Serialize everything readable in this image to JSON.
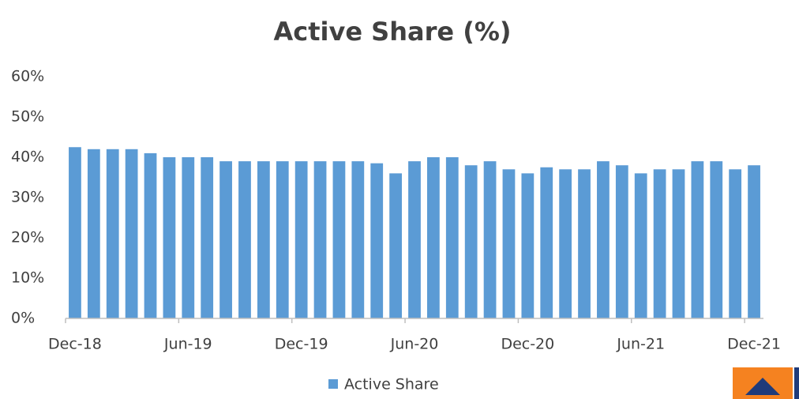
{
  "chart_data": {
    "type": "bar",
    "title": "Active Share (%)",
    "categories": [
      "Dec-18",
      null,
      null,
      null,
      null,
      null,
      "Jun-19",
      null,
      null,
      null,
      null,
      null,
      "Dec-19",
      null,
      null,
      null,
      null,
      null,
      "Jun-20",
      null,
      null,
      null,
      null,
      null,
      "Dec-20",
      null,
      null,
      null,
      null,
      null,
      "Jun-21",
      null,
      null,
      null,
      null,
      null,
      "Dec-21"
    ],
    "series": [
      {
        "name": "Active Share",
        "color": "#5b9bd5",
        "values": [
          42.5,
          42,
          42,
          42,
          41,
          40,
          40,
          40,
          39,
          39,
          39,
          39,
          39,
          39,
          39,
          39,
          38.5,
          36,
          39,
          40,
          40,
          38,
          39,
          37,
          36,
          37.5,
          37,
          37,
          39,
          38,
          36,
          37,
          37,
          39,
          39,
          37,
          38
        ]
      }
    ],
    "ylim": [
      0,
      60
    ],
    "yticks": [
      {
        "value": 0,
        "label": "0%"
      },
      {
        "value": 10,
        "label": "10%"
      },
      {
        "value": 20,
        "label": "20%"
      },
      {
        "value": 30,
        "label": "30%"
      },
      {
        "value": 40,
        "label": "40%"
      },
      {
        "value": 50,
        "label": "50%"
      },
      {
        "value": 60,
        "label": "60%"
      }
    ],
    "grid": false,
    "legend": "bottom"
  }
}
